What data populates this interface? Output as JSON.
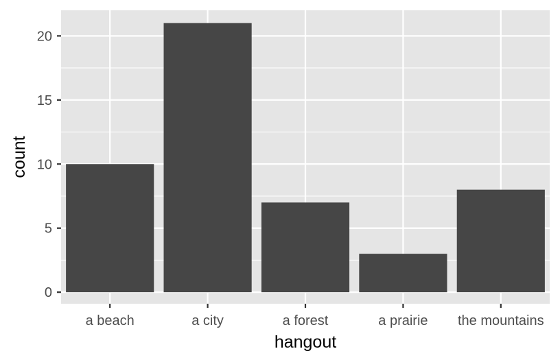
{
  "chart_data": {
    "type": "bar",
    "categories": [
      "a beach",
      "a city",
      "a forest",
      "a prairie",
      "the mountains"
    ],
    "values": [
      10,
      21,
      7,
      3,
      8
    ],
    "xlabel": "hangout",
    "ylabel": "count",
    "ylim": [
      -0.9,
      22.0
    ],
    "yticks": [
      0,
      5,
      10,
      15,
      20
    ],
    "grid": true,
    "colors": {
      "panel": "#e5e5e5",
      "grid": "#ffffff",
      "bar": "#464646",
      "tick": "#333333",
      "tick_text": "#4d4d4d",
      "title_text": "#000000"
    }
  }
}
